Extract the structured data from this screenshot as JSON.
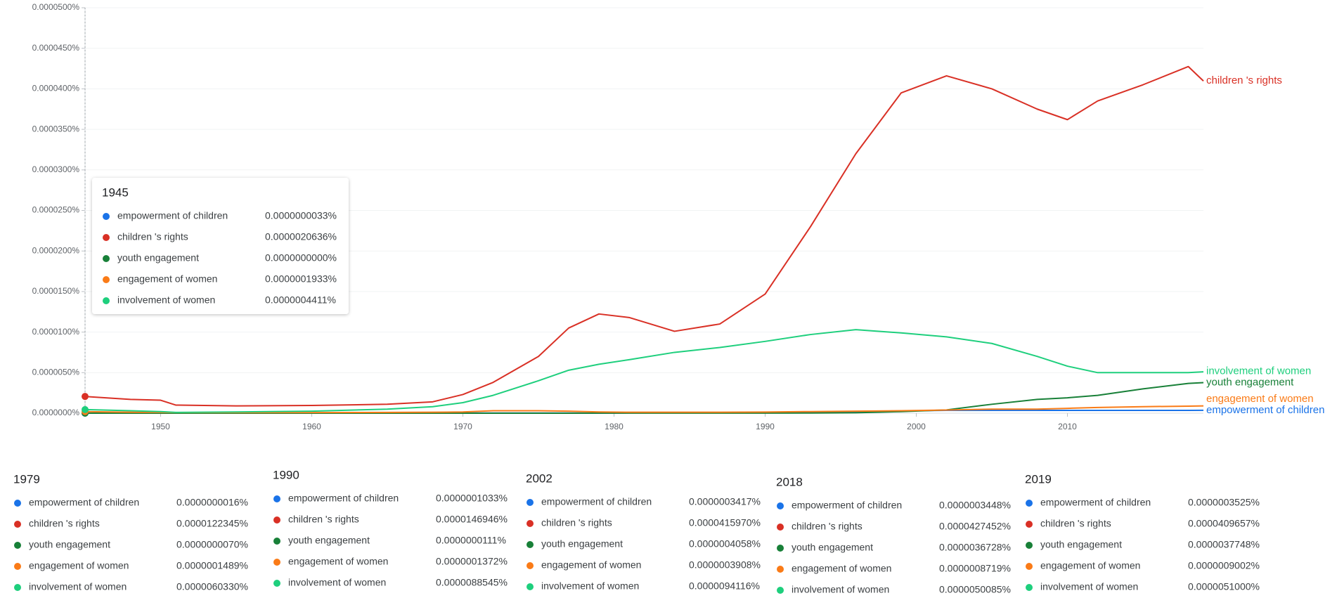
{
  "chart_data": {
    "type": "line",
    "x": [
      1945,
      1948,
      1950,
      1951,
      1955,
      1960,
      1965,
      1968,
      1970,
      1972,
      1975,
      1977,
      1979,
      1981,
      1984,
      1987,
      1990,
      1993,
      1996,
      1999,
      2002,
      2005,
      2008,
      2010,
      2012,
      2015,
      2018,
      2019
    ],
    "xlim": [
      1945,
      2019
    ],
    "xticks": [
      1950,
      1960,
      1970,
      1980,
      1990,
      2000,
      2010
    ],
    "ylim": [
      0,
      5e-05
    ],
    "yticks": [
      {
        "value": 0,
        "label": "0.0000000%"
      },
      {
        "value": 5e-06,
        "label": "0.0000050%"
      },
      {
        "value": 1e-05,
        "label": "0.0000100%"
      },
      {
        "value": 1.5e-05,
        "label": "0.0000150%"
      },
      {
        "value": 2e-05,
        "label": "0.0000200%"
      },
      {
        "value": 2.5e-05,
        "label": "0.0000250%"
      },
      {
        "value": 3e-05,
        "label": "0.0000300%"
      },
      {
        "value": 3.5e-05,
        "label": "0.0000350%"
      },
      {
        "value": 4e-05,
        "label": "0.0000400%"
      },
      {
        "value": 4.5e-05,
        "label": "0.0000450%"
      },
      {
        "value": 5e-05,
        "label": "0.0000500%"
      }
    ],
    "grid": true,
    "series": [
      {
        "name": "empowerment of children",
        "color": "#1a73e8",
        "values": [
          3.3e-09,
          4e-09,
          5e-09,
          5e-09,
          5e-09,
          8e-09,
          1e-08,
          1e-08,
          2e-08,
          2e-08,
          2e-08,
          2e-08,
          1.6e-09,
          3e-08,
          5e-08,
          7e-08,
          1.033e-07,
          1.5e-07,
          2e-07,
          2.8e-07,
          3.417e-07,
          3.5e-07,
          3.5e-07,
          3.5e-07,
          3.5e-07,
          3.5e-07,
          3.448e-07,
          3.525e-07
        ]
      },
      {
        "name": "children 's rights",
        "color": "#d93025",
        "values": [
          2.0636e-06,
          1.7e-06,
          1.6e-06,
          1e-06,
          9e-07,
          9.5e-07,
          1.1e-06,
          1.4e-06,
          2.3e-06,
          3.8e-06,
          7e-06,
          1.05e-05,
          1.22345e-05,
          1.18e-05,
          1.01e-05,
          1.1e-05,
          1.46946e-05,
          2.3e-05,
          3.2e-05,
          3.95e-05,
          4.1597e-05,
          4e-05,
          3.75e-05,
          3.62e-05,
          3.85e-05,
          4.05e-05,
          4.27452e-05,
          4.09657e-05
        ]
      },
      {
        "name": "youth engagement",
        "color": "#188038",
        "values": [
          0,
          0,
          0,
          0,
          0,
          0,
          0,
          0,
          0,
          0,
          0,
          0,
          7e-09,
          1e-08,
          1e-08,
          1e-08,
          1.11e-08,
          2e-08,
          5e-08,
          2e-07,
          4.058e-07,
          1.1e-06,
          1.7e-06,
          1.9e-06,
          2.2e-06,
          3e-06,
          3.6728e-06,
          3.7748e-06
        ]
      },
      {
        "name": "engagement of women",
        "color": "#fa7b17",
        "values": [
          1.933e-07,
          1.2e-07,
          1e-07,
          8e-08,
          8e-08,
          8e-08,
          1e-07,
          1.2e-07,
          1.5e-07,
          3e-07,
          3e-07,
          2.5e-07,
          1.489e-07,
          1.2e-07,
          1.2e-07,
          1.2e-07,
          1.372e-07,
          2e-07,
          2.5e-07,
          3e-07,
          3.908e-07,
          5e-07,
          5e-07,
          6e-07,
          7e-07,
          8e-07,
          8.719e-07,
          9.002e-07
        ]
      },
      {
        "name": "involvement of women",
        "color": "#1ecf7d",
        "values": [
          4.411e-07,
          3e-07,
          2e-07,
          1e-07,
          1.5e-07,
          2.5e-07,
          5e-07,
          8e-07,
          1.3e-06,
          2.2e-06,
          4e-06,
          5.3e-06,
          6.033e-06,
          6.6e-06,
          7.5e-06,
          8.1e-06,
          8.8545e-06,
          9.7e-06,
          1.03e-05,
          9.9e-06,
          9.4116e-06,
          8.6e-06,
          7e-06,
          5.8e-06,
          5e-06,
          5e-06,
          5.0085e-06,
          5.1e-06
        ]
      }
    ],
    "tooltips": [
      {
        "x": 1945,
        "value_labels": [
          "0.0000000033%",
          "0.0000020636%",
          "0.0000000000%",
          "0.0000001933%",
          "0.0000004411%"
        ]
      },
      {
        "x": 1979,
        "value_labels": [
          "0.0000000016%",
          "0.0000122345%",
          "0.0000000070%",
          "0.0000001489%",
          "0.0000060330%"
        ]
      },
      {
        "x": 1990,
        "value_labels": [
          "0.0000001033%",
          "0.0000146946%",
          "0.0000000111%",
          "0.0000001372%",
          "0.0000088545%"
        ]
      },
      {
        "x": 2002,
        "value_labels": [
          "0.0000003417%",
          "0.0000415970%",
          "0.0000004058%",
          "0.0000003908%",
          "0.0000094116%"
        ]
      },
      {
        "x": 2018,
        "value_labels": [
          "0.0000003448%",
          "0.0000427452%",
          "0.0000036728%",
          "0.0000008719%",
          "0.0000050085%"
        ]
      },
      {
        "x": 2019,
        "value_labels": [
          "0.0000003525%",
          "0.0000409657%",
          "0.0000037748%",
          "0.0000009002%",
          "0.0000051000%"
        ]
      }
    ]
  }
}
